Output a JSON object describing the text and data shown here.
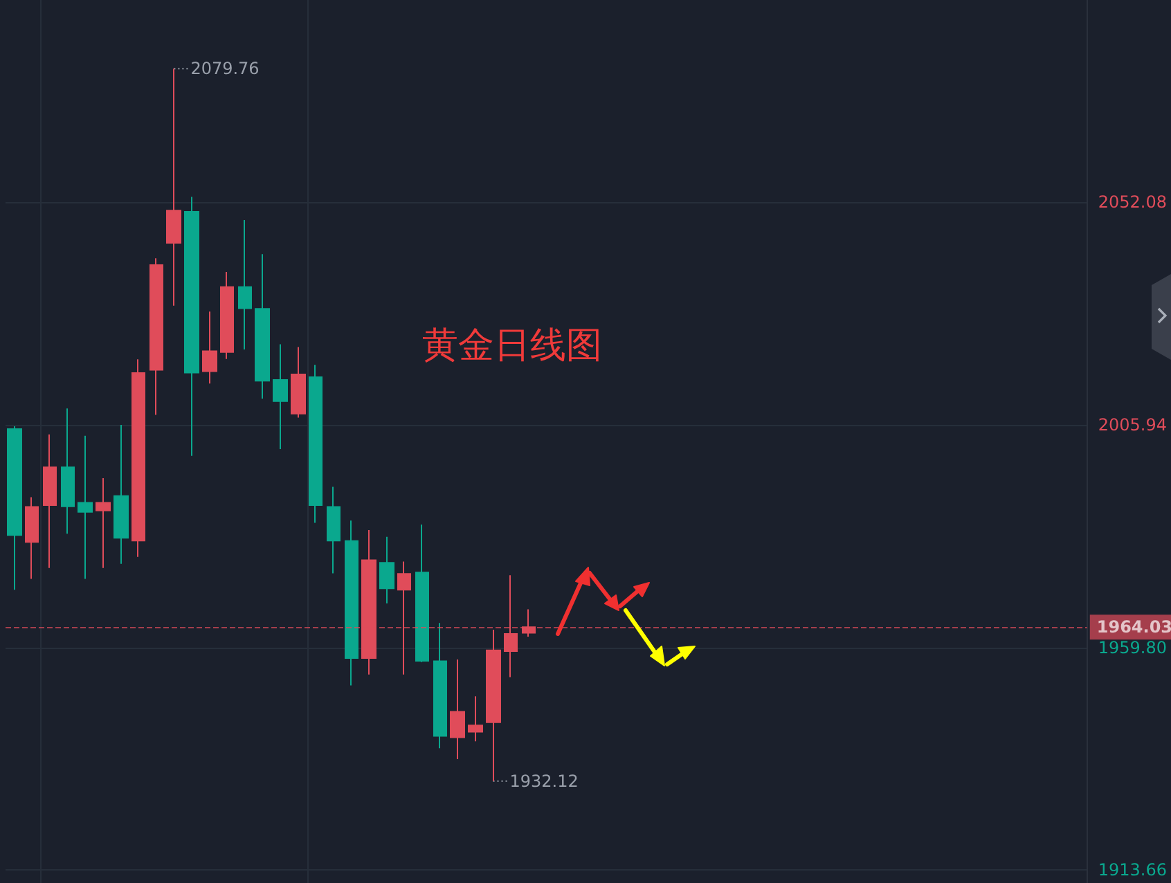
{
  "chart_data": {
    "type": "candlestick",
    "title": "黄金日线图",
    "categories": [
      null,
      null,
      null,
      null,
      null,
      null,
      null,
      null,
      null,
      null,
      null,
      null,
      null,
      null,
      null,
      null,
      null,
      null,
      null,
      null,
      null,
      null,
      null,
      null,
      null,
      null,
      null,
      null,
      null,
      null,
      null,
      null,
      null,
      null,
      null,
      null,
      null,
      null,
      null,
      null,
      null,
      null,
      null,
      null,
      null,
      null,
      null,
      null,
      null,
      null,
      null,
      null,
      null,
      null,
      null,
      null,
      null,
      null,
      null,
      null,
      null
    ],
    "ohlc": [
      [
        2005.09,
        2005.66,
        1971.77,
        1983.1
      ],
      [
        1981.68,
        1990.94,
        1974.04,
        1988.96
      ],
      [
        1989.32,
        2003.96,
        1976.3,
        1997.16
      ],
      [
        1997.16,
        2009.34,
        1983.38,
        1989.04
      ],
      [
        1989.81,
        2003.68,
        1974.04,
        1987.91
      ],
      [
        1988.19,
        1994.9,
        1976.3,
        1989.81
      ],
      [
        1991.22,
        2005.94,
        1977.15,
        1982.53
      ],
      [
        1981.96,
        2019.53,
        1978.57,
        2016.7
      ],
      [
        2017.35,
        2040.47,
        2008.01,
        2039.06
      ],
      [
        2043.67,
        2079.76,
        2030.65,
        2050.38
      ],
      [
        2050.1,
        2053.21,
        1999.51,
        2016.78
      ],
      [
        2017.06,
        2029.43,
        2014.52,
        2021.23
      ],
      [
        2021.03,
        2037.64,
        2019.61,
        2034.53
      ],
      [
        2034.53,
        2048.4,
        2021.59,
        2030.09
      ],
      [
        2030.0,
        2041.32,
        2011.4,
        2015.08
      ],
      [
        2015.28,
        2022.64,
        2000.93,
        2010.84
      ],
      [
        2008.29,
        2022.07,
        2007.44,
        2016.41
      ],
      [
        2015.85,
        2018.39,
        1985.64,
        1989.32
      ],
      [
        1988.96,
        1993.12,
        1975.17,
        1981.96
      ],
      [
        1981.88,
        1986.13,
        1951.96,
        1957.62
      ],
      [
        1957.62,
        1984.14,
        1954.22,
        1977.92
      ],
      [
        1977.35,
        1982.73,
        1968.94,
        1972.06
      ],
      [
        1971.77,
        1977.63,
        1954.22,
        1975.08
      ],
      [
        1975.37,
        1985.28,
        1956.77,
        1957.05
      ],
      [
        1956.97,
        1964.9,
        1938.94,
        1941.49
      ],
      [
        1941.2,
        1957.34,
        1936.67,
        1946.5
      ],
      [
        1942.33,
        1949.7,
        1940.35,
        1943.67
      ],
      [
        1944.32,
        1963.48,
        1932.12,
        1959.23
      ],
      [
        1959.04,
        1974.8,
        1953.66,
        1962.63
      ],
      [
        1962.83,
        1967.73,
        1962.06,
        1964.03
      ],
      null,
      null,
      null,
      null,
      null,
      null,
      null,
      null,
      null,
      null,
      null,
      null,
      null,
      null,
      null,
      null,
      null,
      null,
      null,
      null,
      null,
      null,
      null,
      null,
      null,
      null,
      null,
      null,
      null,
      null,
      null
    ],
    "colors": [
      "#0aa88e",
      "#e04c5a",
      "#e04c5a",
      "#0aa88e",
      "#0aa88e",
      "#e04c5a",
      "#0aa88e",
      "#e04c5a",
      "#e04c5a",
      "#e04c5a",
      "#0aa88e",
      "#e04c5a",
      "#e04c5a",
      "#0aa88e",
      "#0aa88e",
      "#0aa88e",
      "#e04c5a",
      "#0aa88e",
      "#0aa88e",
      "#0aa88e",
      "#e04c5a",
      "#0aa88e",
      "#e04c5a",
      "#0aa88e",
      "#0aa88e",
      "#e04c5a",
      "#e04c5a",
      "#e04c5a",
      "#e04c5a",
      "#e04c5a",
      null,
      null,
      null,
      null,
      null,
      null,
      null,
      null,
      null,
      null,
      null,
      null,
      null,
      null,
      null,
      null,
      null,
      null,
      null,
      null,
      null,
      null,
      null,
      null,
      null,
      null,
      null,
      null,
      null,
      null,
      null
    ],
    "ylim": [
      1911,
      2094
    ],
    "yticks": [
      1913.66,
      {
        "value": 1959.8,
        "label": "1959.80"
      },
      2005.94,
      2052.08
    ],
    "grid": true,
    "ref_lines": [
      {
        "axis": "y",
        "value": 1964.03,
        "label": "1964.03",
        "color": "#e04c5a",
        "line_style": "dashed"
      }
    ],
    "annotations": [
      "2079.76",
      "1932.12"
    ]
  }
}
